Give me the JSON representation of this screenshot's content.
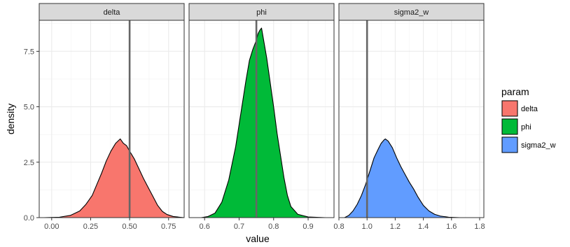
{
  "chart_data": {
    "type": "area",
    "facets": [
      "delta",
      "phi",
      "sigma2_w"
    ],
    "xlabel": "value",
    "ylabel": "density",
    "ylim": [
      0,
      8.9
    ],
    "y_ticks": [
      0.0,
      2.5,
      5.0,
      7.5
    ],
    "y_tick_labels": [
      "0.0",
      "2.5",
      "5.0",
      "7.5"
    ],
    "grid": true,
    "legend": {
      "title": "param",
      "placement": "right",
      "entries": [
        {
          "label": "delta",
          "color": "#F8766D"
        },
        {
          "label": "phi",
          "color": "#00BA38"
        },
        {
          "label": "sigma2_w",
          "color": "#619CFF"
        }
      ]
    },
    "panels": [
      {
        "name": "delta",
        "strip": "delta",
        "color": "#F8766D",
        "xlim": [
          -0.08,
          0.85
        ],
        "x_ticks": [
          0.0,
          0.25,
          0.5,
          0.75
        ],
        "x_tick_labels": [
          "0.00",
          "0.25",
          "0.50",
          "0.75"
        ],
        "vline": 0.5,
        "x": [
          -0.05,
          0.05,
          0.12,
          0.18,
          0.22,
          0.26,
          0.29,
          0.32,
          0.35,
          0.38,
          0.41,
          0.44,
          0.46,
          0.48,
          0.5,
          0.53,
          0.56,
          0.59,
          0.62,
          0.65,
          0.68,
          0.71,
          0.74,
          0.78,
          0.82,
          0.85
        ],
        "y": [
          0.0,
          0.02,
          0.1,
          0.3,
          0.6,
          1.0,
          1.5,
          2.0,
          2.55,
          3.0,
          3.35,
          3.55,
          3.35,
          3.25,
          3.0,
          2.65,
          2.2,
          1.75,
          1.35,
          0.95,
          0.55,
          0.28,
          0.14,
          0.05,
          0.02,
          0.0
        ]
      },
      {
        "name": "phi",
        "strip": "phi",
        "color": "#00BA38",
        "xlim": [
          0.555,
          0.975
        ],
        "x_ticks": [
          0.6,
          0.7,
          0.8,
          0.9
        ],
        "x_tick_labels": [
          "0.6",
          "0.7",
          "0.8",
          "0.9"
        ],
        "vline": 0.75,
        "x": [
          0.59,
          0.61,
          0.63,
          0.65,
          0.67,
          0.69,
          0.7,
          0.71,
          0.72,
          0.73,
          0.74,
          0.75,
          0.755,
          0.76,
          0.765,
          0.77,
          0.78,
          0.79,
          0.8,
          0.81,
          0.82,
          0.83,
          0.84,
          0.85,
          0.87,
          0.9,
          0.95
        ],
        "y": [
          0.0,
          0.05,
          0.2,
          0.7,
          1.7,
          3.2,
          4.2,
          5.2,
          6.2,
          7.1,
          7.6,
          8.0,
          8.3,
          8.45,
          8.55,
          8.1,
          7.2,
          6.1,
          5.0,
          3.8,
          2.8,
          1.8,
          1.0,
          0.5,
          0.15,
          0.03,
          0.0
        ]
      },
      {
        "name": "sigma2_w",
        "strip": "sigma2_w",
        "color": "#619CFF",
        "xlim": [
          0.8,
          1.83
        ],
        "x_ticks": [
          0.8,
          1.0,
          1.2,
          1.4,
          1.6,
          1.8
        ],
        "x_tick_labels": [
          "0.8",
          "1.0",
          "1.2",
          "1.4",
          "1.6",
          "1.8"
        ],
        "vline": 1.0,
        "x": [
          0.84,
          0.87,
          0.9,
          0.93,
          0.96,
          0.99,
          1.02,
          1.05,
          1.08,
          1.1,
          1.12,
          1.13,
          1.15,
          1.18,
          1.21,
          1.24,
          1.27,
          1.3,
          1.33,
          1.36,
          1.4,
          1.44,
          1.48,
          1.52,
          1.58,
          1.66,
          1.8
        ],
        "y": [
          0.0,
          0.1,
          0.3,
          0.6,
          1.0,
          1.5,
          2.1,
          2.7,
          3.1,
          3.35,
          3.5,
          3.55,
          3.45,
          3.15,
          2.7,
          2.3,
          1.95,
          1.6,
          1.3,
          0.95,
          0.55,
          0.3,
          0.15,
          0.07,
          0.02,
          0.0,
          0.0
        ]
      }
    ]
  }
}
